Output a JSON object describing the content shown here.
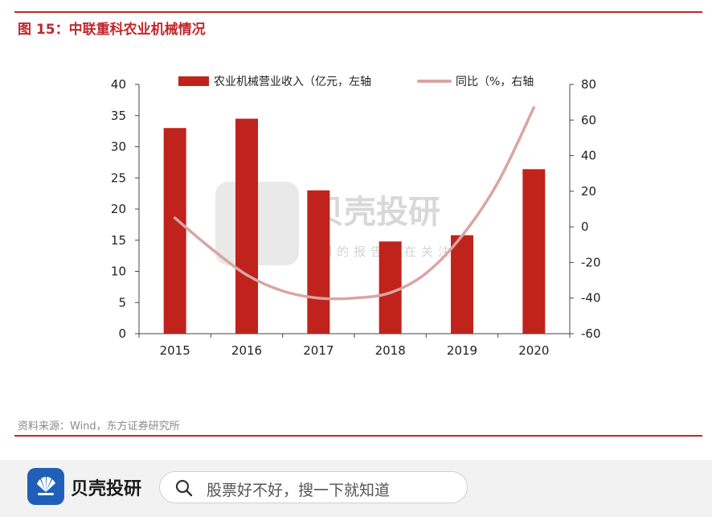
{
  "header": {
    "title": "图 15：中联重科农业机械情况"
  },
  "chart_data": {
    "type": "bar+line",
    "categories": [
      "2015",
      "2016",
      "2017",
      "2018",
      "2019",
      "2020"
    ],
    "series": [
      {
        "name": "农业机械营业收入（亿元，左轴",
        "type": "bar",
        "axis": "left",
        "values": [
          33.0,
          34.5,
          23.0,
          14.8,
          15.8,
          26.4
        ]
      },
      {
        "name": "同比（%，右轴",
        "type": "line",
        "axis": "right",
        "values": [
          5,
          null,
          null,
          null,
          null,
          67
        ],
        "curve": [
          [
            0,
            5
          ],
          [
            0.5,
            -12
          ],
          [
            1,
            -27
          ],
          [
            1.5,
            -36
          ],
          [
            2,
            -40
          ],
          [
            2.5,
            -40
          ],
          [
            3,
            -37
          ],
          [
            3.5,
            -26
          ],
          [
            4,
            -5
          ],
          [
            4.5,
            25
          ],
          [
            5,
            67
          ]
        ]
      }
    ],
    "y_left": {
      "min": 0,
      "max": 40,
      "ticks": [
        "0",
        "5",
        "10",
        "15",
        "20",
        "25",
        "30",
        "35",
        "40"
      ]
    },
    "y_right": {
      "min": -60,
      "max": 80,
      "ticks": [
        "-60",
        "-40",
        "-20",
        "0",
        "20",
        "40",
        "60",
        "80"
      ]
    },
    "legend_position": "top",
    "grid": false
  },
  "colors": {
    "bar": "#c0231c",
    "line": "#d9a5a2",
    "accent": "#c0272d",
    "watermark": "#c8c8c8"
  },
  "watermark": {
    "brand": "贝壳投研",
    "tagline": "明的报告都在关注"
  },
  "source": "资料来源：Wind，东方证券研究所",
  "footer": {
    "brand": "贝壳投研",
    "search_placeholder": "股票好不好，搜一下就知道",
    "logo_icon": "shell-logo-icon",
    "search_icon": "search-icon"
  }
}
